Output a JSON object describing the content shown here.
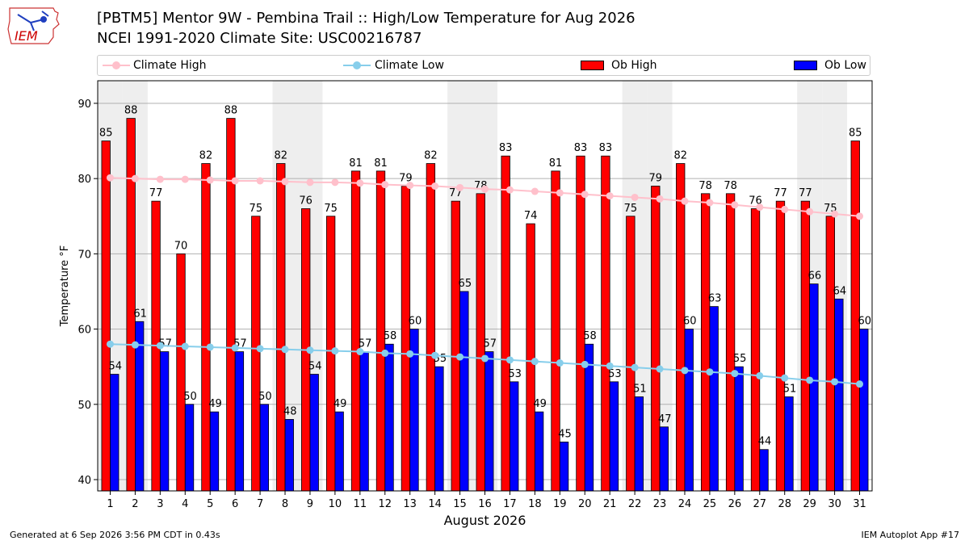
{
  "header": {
    "logo_text": "IEM",
    "title_line1": "[PBTM5] Mentor 9W - Pembina Trail :: High/Low Temperature for Aug 2026",
    "title_line2": "NCEI 1991-2020 Climate Site: USC00216787"
  },
  "footer": {
    "generated": "Generated at 6 Sep 2026 3:56 PM CDT in 0.43s",
    "app": "IEM Autoplot App #17"
  },
  "legend": {
    "climate_high": "Climate High",
    "climate_low": "Climate Low",
    "ob_high": "Ob High",
    "ob_low": "Ob Low"
  },
  "chart_data": {
    "type": "bar",
    "xlabel": "August 2026",
    "ylabel": "Temperature °F",
    "ylim": [
      38.5,
      93
    ],
    "yticks": [
      40,
      50,
      60,
      70,
      80,
      90
    ],
    "grid": true,
    "legend_position": "top",
    "categories": [
      "1",
      "2",
      "3",
      "4",
      "5",
      "6",
      "7",
      "8",
      "9",
      "10",
      "11",
      "12",
      "13",
      "14",
      "15",
      "16",
      "17",
      "18",
      "19",
      "20",
      "21",
      "22",
      "23",
      "24",
      "25",
      "26",
      "27",
      "28",
      "29",
      "30",
      "31"
    ],
    "weekend_shaded_days": [
      1,
      2,
      8,
      9,
      15,
      16,
      22,
      23,
      29,
      30
    ],
    "series": [
      {
        "name": "Ob High",
        "kind": "bar",
        "color": "#ff0000",
        "values": [
          85,
          88,
          77,
          70,
          82,
          88,
          75,
          82,
          76,
          75,
          81,
          81,
          79,
          82,
          77,
          78,
          83,
          74,
          81,
          83,
          83,
          75,
          79,
          82,
          78,
          78,
          76,
          77,
          77,
          75,
          85
        ]
      },
      {
        "name": "Ob Low",
        "kind": "bar",
        "color": "#0000ff",
        "values": [
          54,
          61,
          57,
          50,
          49,
          57,
          50,
          48,
          54,
          49,
          57,
          58,
          60,
          55,
          65,
          57,
          53,
          49,
          45,
          58,
          53,
          51,
          47,
          60,
          63,
          55,
          44,
          51,
          66,
          64,
          60
        ]
      },
      {
        "name": "Climate High",
        "kind": "line",
        "color": "#ffc0cb",
        "values": [
          80.1,
          80.0,
          79.9,
          79.9,
          79.8,
          79.7,
          79.7,
          79.6,
          79.5,
          79.5,
          79.4,
          79.2,
          79.1,
          79.0,
          78.8,
          78.6,
          78.5,
          78.3,
          78.1,
          77.9,
          77.7,
          77.5,
          77.3,
          77.0,
          76.8,
          76.5,
          76.2,
          75.9,
          75.6,
          75.3,
          75.0
        ]
      },
      {
        "name": "Climate Low",
        "kind": "line",
        "color": "#87ceeb",
        "values": [
          58.0,
          57.9,
          57.8,
          57.7,
          57.6,
          57.5,
          57.4,
          57.3,
          57.2,
          57.1,
          57.0,
          56.8,
          56.7,
          56.5,
          56.3,
          56.1,
          55.9,
          55.7,
          55.5,
          55.3,
          55.1,
          54.9,
          54.7,
          54.5,
          54.3,
          54.1,
          53.8,
          53.5,
          53.2,
          53.0,
          52.7
        ]
      }
    ]
  }
}
